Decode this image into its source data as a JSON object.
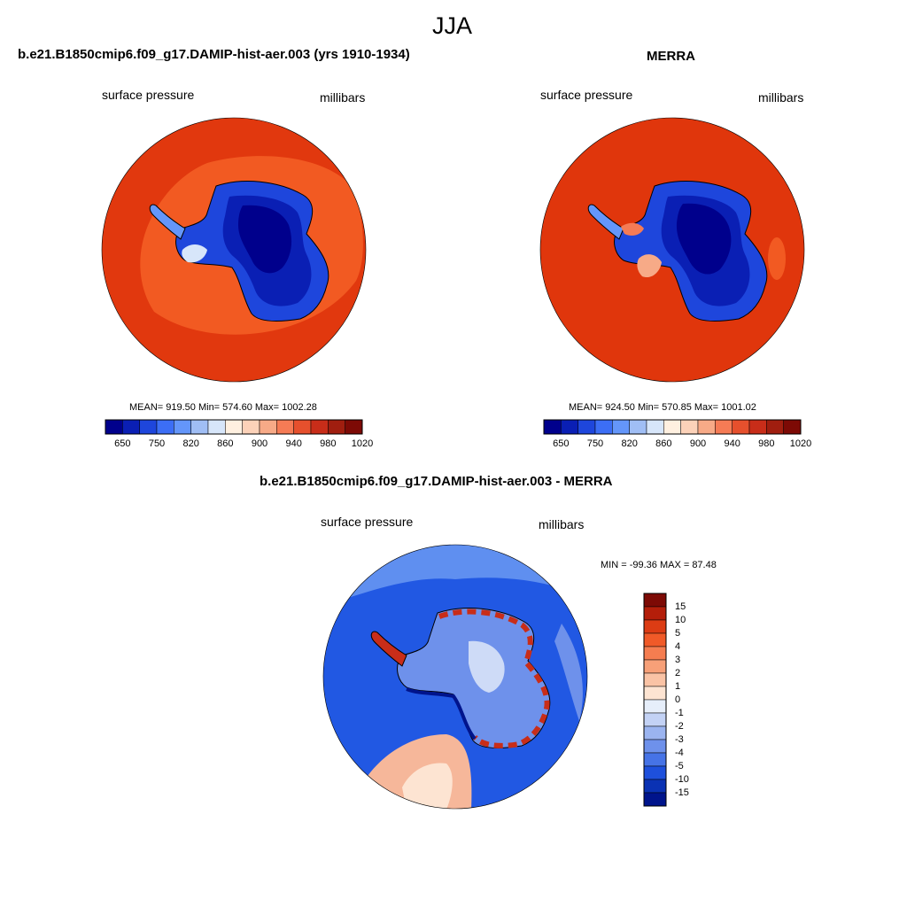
{
  "figure": {
    "season": "JJA",
    "panels": [
      {
        "id": "model",
        "title": "b.e21.B1850cmip6.f09_g17.DAMIP-hist-aer.003 (yrs 1910-1934)",
        "variable": "surface pressure",
        "units": "millibars",
        "stats": "MEAN= 919.50  Min= 574.60  Max= 1002.28"
      },
      {
        "id": "obs",
        "title": "MERRA",
        "variable": "surface pressure",
        "units": "millibars",
        "stats": "MEAN= 924.50  Min= 570.85  Max= 1001.02"
      },
      {
        "id": "diff",
        "title": "b.e21.B1850cmip6.f09_g17.DAMIP-hist-aer.003 - MERRA",
        "variable": "surface pressure",
        "units": "millibars",
        "stats": "MIN = -99.36 MAX =  87.48"
      }
    ]
  },
  "chart_data": [
    {
      "type": "heatmap",
      "title": "b.e21.B1850cmip6.f09_g17.DAMIP-hist-aer.003 (yrs 1910-1934)",
      "variable": "surface pressure",
      "units": "millibars",
      "projection": "polar stereographic, south pole",
      "mean": 919.5,
      "min": 574.6,
      "max": 1002.28,
      "colorbar": {
        "orientation": "horizontal",
        "tick_labels": [
          "650",
          "750",
          "820",
          "860",
          "900",
          "940",
          "980",
          "1020"
        ],
        "colors": [
          "#00008c",
          "#0a1fb4",
          "#1e46dc",
          "#3c6ef5",
          "#6496fa",
          "#a0bef5",
          "#d7e6fa",
          "#fff0e0",
          "#fcd2b9",
          "#f7aa87",
          "#f57b55",
          "#e6502d",
          "#c82d19",
          "#a01e0f",
          "#7d0a05"
        ]
      }
    },
    {
      "type": "heatmap",
      "title": "MERRA",
      "variable": "surface pressure",
      "units": "millibars",
      "projection": "polar stereographic, south pole",
      "mean": 924.5,
      "min": 570.85,
      "max": 1001.02,
      "colorbar": {
        "orientation": "horizontal",
        "tick_labels": [
          "650",
          "750",
          "820",
          "860",
          "900",
          "940",
          "980",
          "1020"
        ],
        "colors": [
          "#00008c",
          "#0a1fb4",
          "#1e46dc",
          "#3c6ef5",
          "#6496fa",
          "#a0bef5",
          "#d7e6fa",
          "#fff0e0",
          "#fcd2b9",
          "#f7aa87",
          "#f57b55",
          "#e6502d",
          "#c82d19",
          "#a01e0f",
          "#7d0a05"
        ]
      }
    },
    {
      "type": "heatmap",
      "title": "b.e21.B1850cmip6.f09_g17.DAMIP-hist-aer.003 - MERRA",
      "variable": "surface pressure",
      "units": "millibars",
      "projection": "polar stereographic, south pole",
      "min": -99.36,
      "max": 87.48,
      "colorbar": {
        "orientation": "vertical",
        "tick_labels": [
          "15",
          "10",
          "5",
          "4",
          "3",
          "2",
          "1",
          "0",
          "-1",
          "-2",
          "-3",
          "-4",
          "-5",
          "-10",
          "-15"
        ],
        "colors": [
          "#7d0a05",
          "#b41e0a",
          "#dc3c14",
          "#f05a28",
          "#f57d50",
          "#f7a078",
          "#fac3a5",
          "#fde4d2",
          "#e6eefa",
          "#c3d2f5",
          "#9bb4f0",
          "#6e91eb",
          "#4673e6",
          "#1e50dc",
          "#0a32b4",
          "#00148c"
        ]
      }
    }
  ],
  "colors": {
    "ocean_model": "#e1380e",
    "ocean_model_ring": "#f25a22",
    "ocean_obs": "#e0360c",
    "diff_ocean": "#2158e3",
    "diff_light": "#5f8ff0",
    "diff_warm": "#f6b79a",
    "coast": "#000000"
  }
}
